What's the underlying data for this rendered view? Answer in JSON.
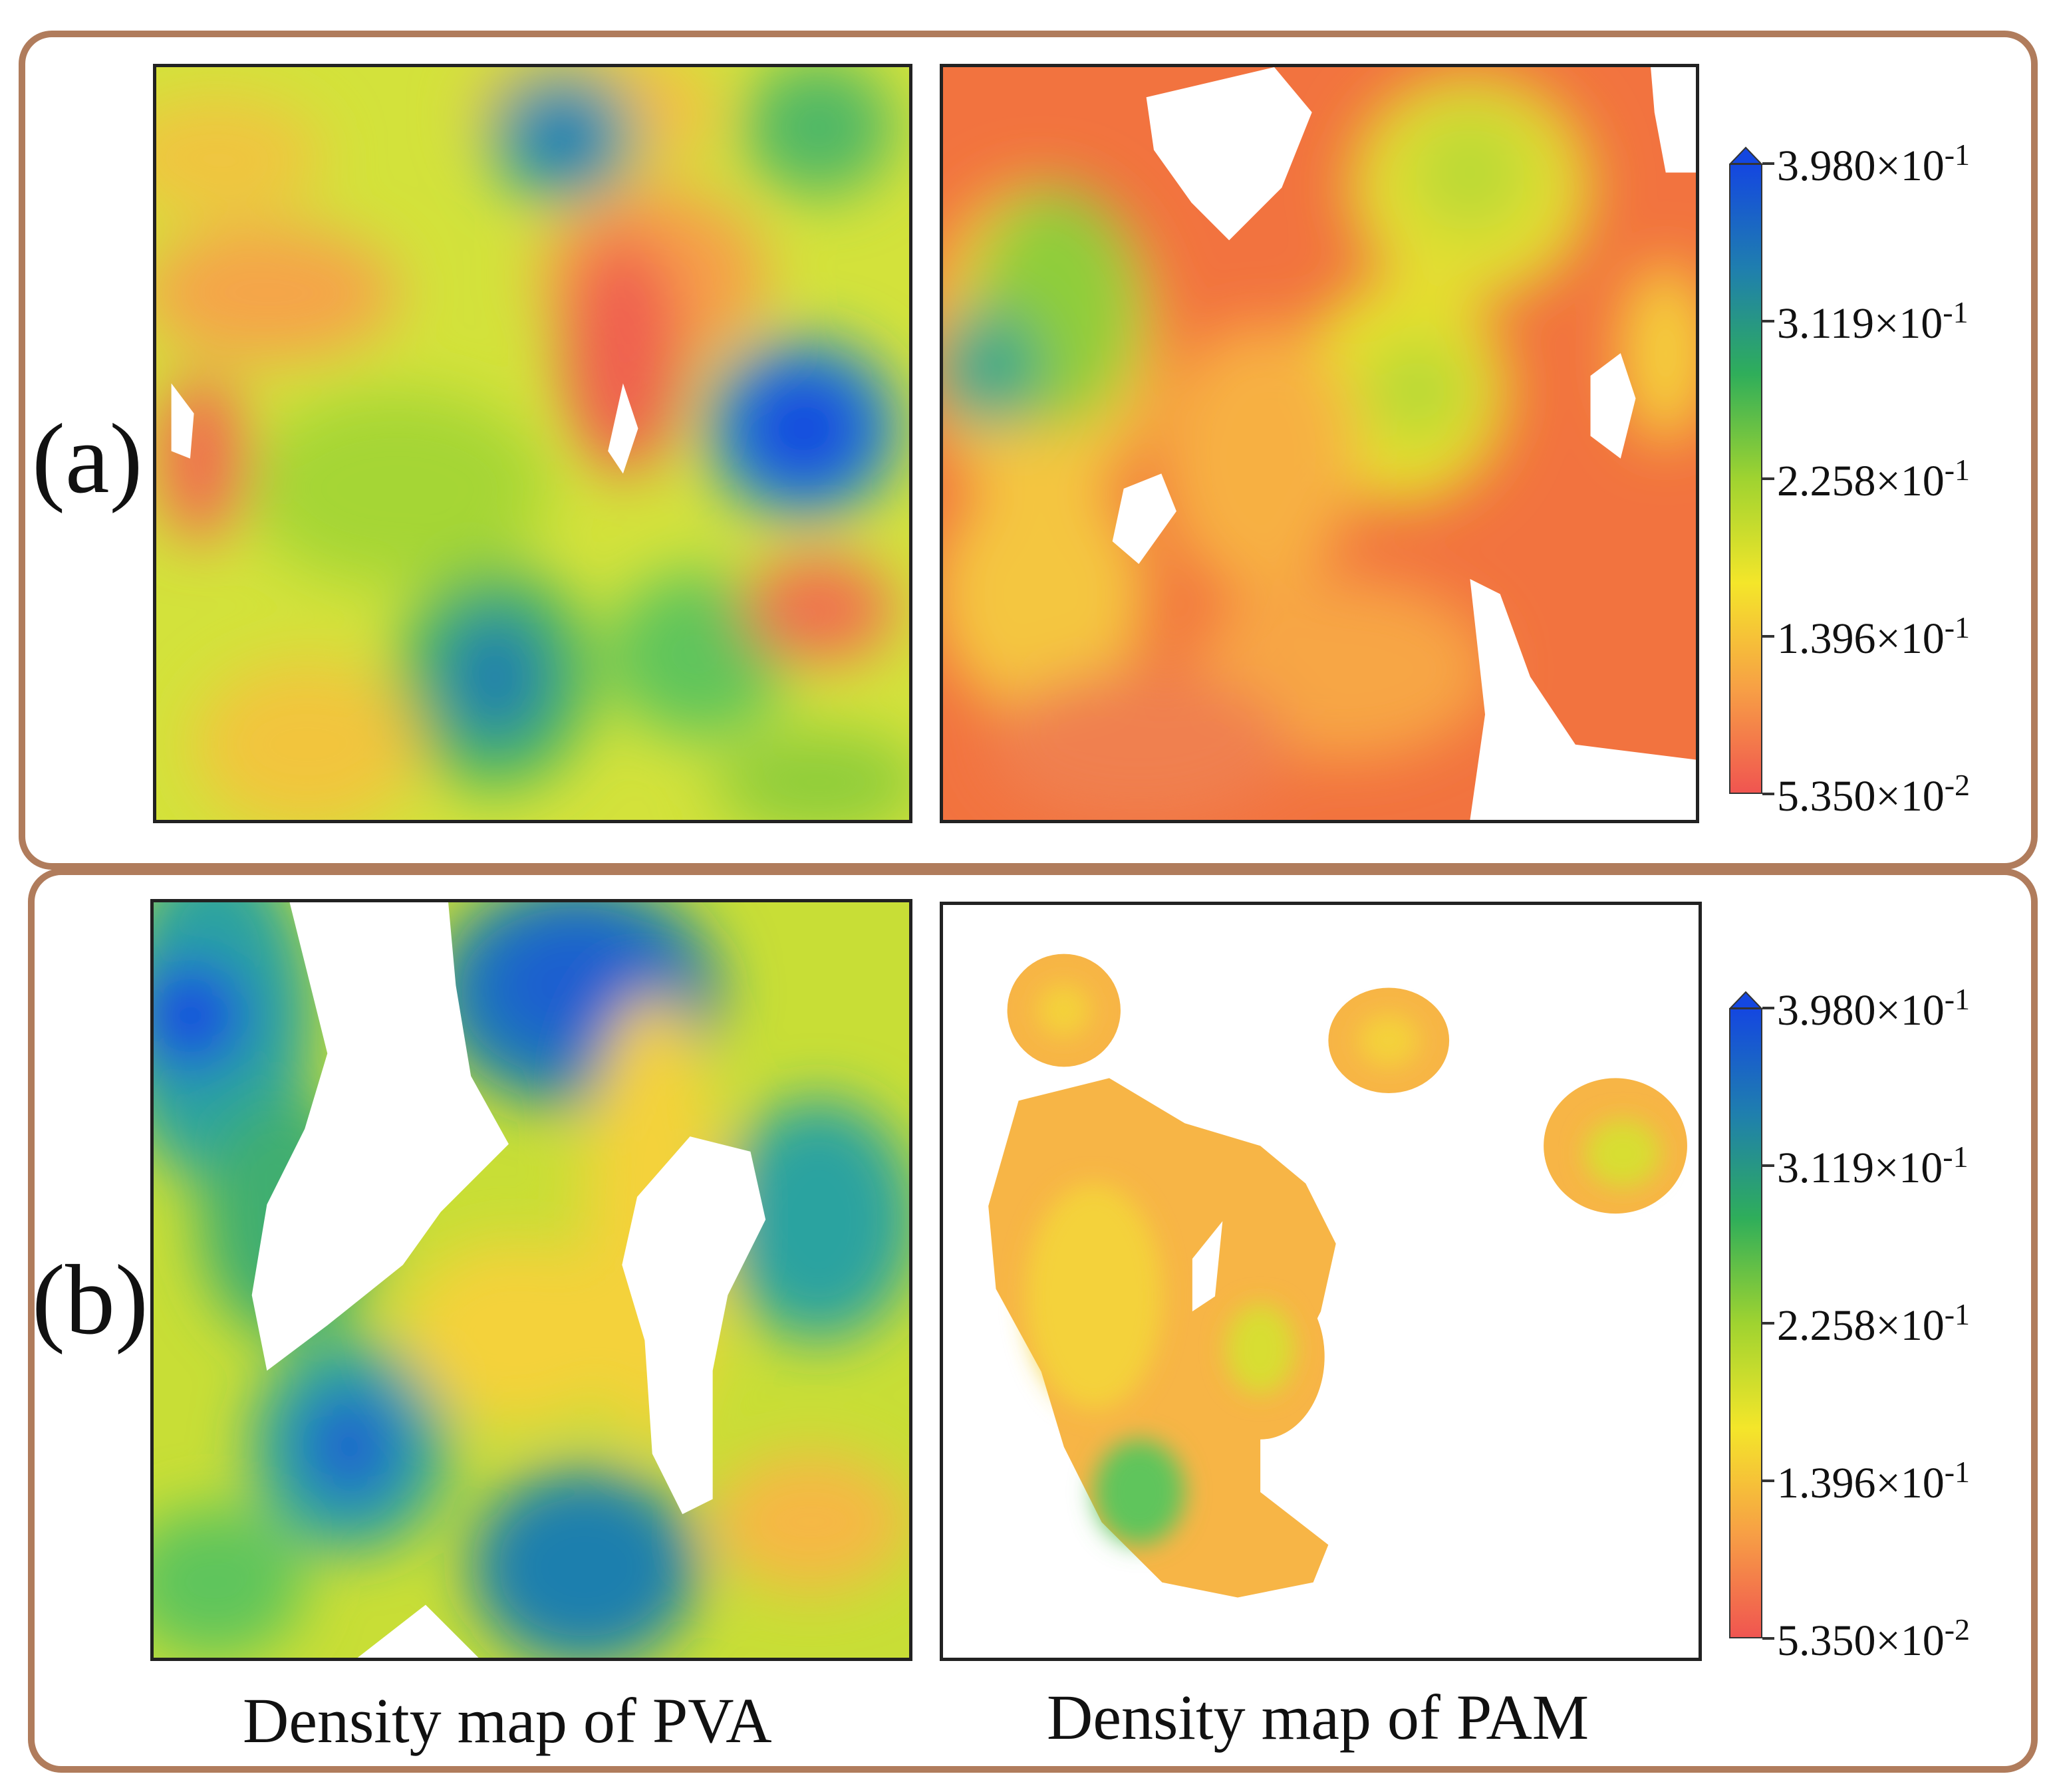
{
  "chart_data": {
    "type": "heatmap",
    "title": "",
    "colorbar": {
      "min": 0.0535,
      "max": 0.398,
      "colormap": [
        "#f05550",
        "#f7a045",
        "#f4e62a",
        "#9fd330",
        "#2fae5a",
        "#1f7fae",
        "#1447e0"
      ],
      "ticks": [
        {
          "value": 0.398,
          "mantissa": "3.980",
          "exponent": "-1"
        },
        {
          "value": 0.3119,
          "mantissa": "3.119",
          "exponent": "-1"
        },
        {
          "value": 0.2258,
          "mantissa": "2.258",
          "exponent": "-1"
        },
        {
          "value": 0.1396,
          "mantissa": "1.396",
          "exponent": "-1"
        },
        {
          "value": 0.0535,
          "mantissa": "5.350",
          "exponent": "-2"
        }
      ]
    },
    "panels": [
      {
        "label": "(a)",
        "maps": [
          {
            "name": "PVA",
            "caption": "Density map of PVA"
          },
          {
            "name": "PAM",
            "caption": "Density map of PAM"
          }
        ]
      },
      {
        "label": "(b)",
        "maps": [
          {
            "name": "PVA",
            "caption": "Density map of PVA"
          },
          {
            "name": "PAM",
            "caption": "Density map of PAM"
          }
        ]
      }
    ],
    "xlabel": "",
    "ylabel": ""
  },
  "captions": {
    "pva": "Density map of PVA",
    "pam": "Density map of PAM"
  },
  "labels": {
    "a": "(a)",
    "b": "(b)"
  }
}
